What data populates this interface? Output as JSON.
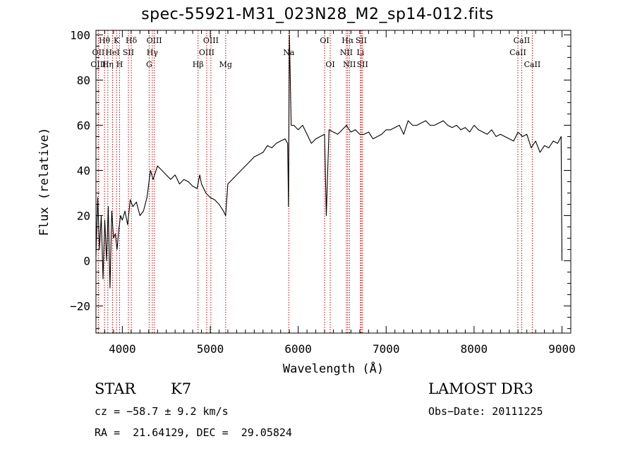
{
  "chart_data": {
    "type": "line",
    "title": "spec-55921-M31_023N28_M2_sp14-012.fits",
    "xlabel": "Wavelength (Å)",
    "ylabel": "Flux (relative)",
    "xlim": [
      3700,
      9100
    ],
    "ylim": [
      -32,
      102
    ],
    "xticks": [
      4000,
      5000,
      6000,
      7000,
      8000,
      9000
    ],
    "yticks": [
      -20,
      0,
      20,
      40,
      60,
      80,
      100
    ],
    "ytick_labels": [
      "−20",
      "0",
      "20",
      "40",
      "60",
      "80",
      "100"
    ],
    "line_color": "#000000",
    "marker_color": "#cc0000",
    "spectrum": {
      "x": [
        3700,
        3720,
        3740,
        3760,
        3780,
        3800,
        3820,
        3840,
        3860,
        3880,
        3900,
        3920,
        3940,
        3960,
        3980,
        4000,
        4030,
        4060,
        4090,
        4120,
        4160,
        4200,
        4240,
        4280,
        4320,
        4350,
        4400,
        4450,
        4500,
        4550,
        4600,
        4650,
        4700,
        4750,
        4800,
        4850,
        4880,
        4900,
        4950,
        5000,
        5050,
        5100,
        5150,
        5175,
        5200,
        5250,
        5300,
        5350,
        5400,
        5450,
        5500,
        5550,
        5600,
        5650,
        5700,
        5750,
        5800,
        5850,
        5880,
        5890,
        5900,
        5920,
        5950,
        6000,
        6050,
        6100,
        6150,
        6200,
        6250,
        6300,
        6320,
        6350,
        6400,
        6450,
        6500,
        6550,
        6563,
        6600,
        6650,
        6700,
        6750,
        6800,
        6850,
        6900,
        6950,
        7000,
        7050,
        7100,
        7150,
        7200,
        7250,
        7300,
        7350,
        7400,
        7450,
        7500,
        7550,
        7600,
        7650,
        7700,
        7750,
        7800,
        7850,
        7900,
        7950,
        8000,
        8050,
        8100,
        8150,
        8200,
        8250,
        8300,
        8350,
        8400,
        8450,
        8500,
        8550,
        8600,
        8650,
        8700,
        8750,
        8800,
        8850,
        8900,
        8950,
        8990,
        9000
      ],
      "y": [
        2,
        28,
        5,
        20,
        -8,
        18,
        0,
        24,
        -12,
        22,
        10,
        12,
        5,
        14,
        20,
        18,
        22,
        16,
        27,
        24,
        26,
        20,
        22,
        28,
        40,
        36,
        42,
        40,
        38,
        36,
        38,
        34,
        36,
        35,
        33,
        32,
        38,
        34,
        30,
        28,
        27,
        25,
        22,
        20,
        34,
        36,
        38,
        40,
        42,
        44,
        46,
        47,
        48,
        51,
        50,
        52,
        53,
        54,
        52,
        24,
        100,
        60,
        60,
        58,
        60,
        56,
        52,
        54,
        55,
        56,
        20,
        58,
        57,
        56,
        58,
        60,
        59,
        57,
        58,
        56,
        56,
        57,
        54,
        55,
        56,
        58,
        58,
        59,
        60,
        56,
        62,
        60,
        60,
        61,
        62,
        60,
        60,
        61,
        62,
        60,
        59,
        60,
        58,
        59,
        57,
        60,
        58,
        57,
        56,
        58,
        55,
        56,
        55,
        54,
        53,
        57,
        55,
        56,
        50,
        53,
        48,
        51,
        50,
        53,
        52,
        55,
        0
      ]
    },
    "lines": [
      {
        "label": "Hθ",
        "wave": 3797,
        "row": 1
      },
      {
        "label": "OII",
        "wave": 3727,
        "row": 2
      },
      {
        "label": "OIII",
        "wave": 3727,
        "row": 3
      },
      {
        "label": "K",
        "wave": 3934,
        "row": 1
      },
      {
        "label": "HeI",
        "wave": 3889,
        "row": 2
      },
      {
        "label": "Hη",
        "wave": 3835,
        "row": 3
      },
      {
        "label": "Hδ",
        "wave": 4102,
        "row": 1
      },
      {
        "label": "SII",
        "wave": 4069,
        "row": 2
      },
      {
        "label": "H",
        "wave": 3969,
        "row": 3
      },
      {
        "label": "OIII",
        "wave": 4363,
        "row": 1
      },
      {
        "label": "Hγ",
        "wave": 4341,
        "row": 2
      },
      {
        "label": "G",
        "wave": 4305,
        "row": 3
      },
      {
        "label": "OIII",
        "wave": 5007,
        "row": 1
      },
      {
        "label": "OIII",
        "wave": 4959,
        "row": 2
      },
      {
        "label": "Hβ",
        "wave": 4861,
        "row": 3
      },
      {
        "label": "Mg",
        "wave": 5175,
        "row": 3
      },
      {
        "label": "Na",
        "wave": 5893,
        "row": 2
      },
      {
        "label": "OI",
        "wave": 6300,
        "row": 1
      },
      {
        "label": "OI",
        "wave": 6364,
        "row": 3
      },
      {
        "label": "Hα",
        "wave": 6563,
        "row": 1
      },
      {
        "label": "SII",
        "wave": 6717,
        "row": 1
      },
      {
        "label": "NII",
        "wave": 6548,
        "row": 2
      },
      {
        "label": "Li",
        "wave": 6708,
        "row": 2
      },
      {
        "label": "NII",
        "wave": 6583,
        "row": 3
      },
      {
        "label": "SII",
        "wave": 6731,
        "row": 3
      },
      {
        "label": "CaII",
        "wave": 8542,
        "row": 1
      },
      {
        "label": "CaII",
        "wave": 8498,
        "row": 2
      },
      {
        "label": "CaII",
        "wave": 8662,
        "row": 3
      }
    ]
  },
  "info": {
    "class": "STAR",
    "subclass": "K7",
    "survey": "LAMOST DR3",
    "cz": "cz = −58.7 ± 9.2 km/s",
    "obs_date": "Obs−Date: 20111225",
    "radec": "RA =  21.64129, DEC =  29.05824"
  }
}
